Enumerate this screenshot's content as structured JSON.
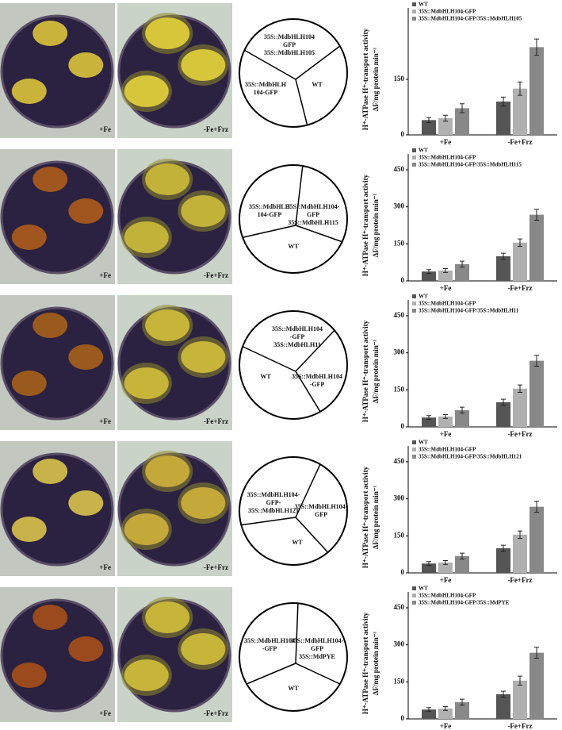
{
  "panels": [
    {
      "plates": [
        "+Fe",
        "-Fe+Frz"
      ],
      "regions": [
        [
          "35S::MdbHLH104",
          "GFP",
          "35S::MdbHLH105"
        ],
        [
          "35S::MdbHLH",
          "104-GFP"
        ],
        [
          "WT"
        ]
      ]
    },
    {
      "plates": [
        "+Fe",
        "-Fe+Frz"
      ],
      "regions": [
        [
          "35S::MdbHLH104-",
          "GFP",
          "35S::MdbHLH115"
        ],
        [
          "35S::MdbHLH",
          "104-GFP"
        ],
        [
          "WT"
        ]
      ]
    },
    {
      "plates": [
        "+Fe",
        "-Fe+Frz"
      ],
      "regions": [
        [
          "35S::MdbHLH104",
          "-GFP",
          "35S::MdbHLH11"
        ],
        [
          "WT"
        ],
        [
          "35S::MdbHLH104",
          "-GFP"
        ]
      ]
    },
    {
      "plates": [
        "+Fe",
        "-Fe+Frz"
      ],
      "regions": [
        [
          "35S::MdbHLH104-",
          "GFP-",
          "35S::MdbHLH121"
        ],
        [
          "35S::MdbHLH104-",
          "GFP"
        ],
        [
          "WT"
        ]
      ]
    },
    {
      "plates": [
        "+Fe",
        "-Fe+Frz"
      ],
      "regions": [
        [
          "35S::MdbHLH104",
          "-GFP"
        ],
        [
          "35S::MdbHLH104-",
          "GFP",
          "35S::MdPYE"
        ],
        [
          "WT"
        ]
      ]
    }
  ],
  "chart_data": [
    {
      "type": "bar",
      "y_label": [
        "H⁺-ATPase H⁺-transport activity",
        "ΔF/mg protein min⁻¹"
      ],
      "categories": [
        "+Fe",
        "-Fe+Frz"
      ],
      "series": [
        {
          "name": "WT",
          "color": "#555555",
          "values": [
            40,
            90
          ],
          "errors": [
            7,
            12
          ]
        },
        {
          "name": "35S::MdbHLH104-GFP",
          "color": "#b0b0b0",
          "values": [
            45,
            125
          ],
          "errors": [
            8,
            18
          ]
        },
        {
          "name": "35S::MdbHLH104-GFP/35S::MdbHLH105",
          "color": "#888888",
          "values": [
            72,
            237
          ],
          "errors": [
            12,
            22
          ]
        }
      ],
      "ylim": [
        0,
        300
      ],
      "yticks": [
        0,
        150
      ]
    },
    {
      "type": "bar",
      "y_label": [
        "H⁺-ATPase H⁺-transport activity",
        "ΔF/mg protein min⁻¹"
      ],
      "categories": [
        "+Fe",
        "-Fe+Frz"
      ],
      "series": [
        {
          "name": "WT",
          "color": "#555555",
          "values": [
            38,
            100
          ],
          "errors": [
            8,
            12
          ]
        },
        {
          "name": "35S::MdbHLH104-GFP",
          "color": "#b0b0b0",
          "values": [
            42,
            155
          ],
          "errors": [
            8,
            15
          ]
        },
        {
          "name": "35S::MdbHLH104-GFP/35S::MdbHLH115",
          "color": "#888888",
          "values": [
            68,
            268
          ],
          "errors": [
            12,
            22
          ]
        }
      ],
      "ylim": [
        0,
        450
      ],
      "yticks": [
        0,
        150,
        300,
        450
      ]
    },
    {
      "type": "bar",
      "y_label": [
        "H⁺-ATPase H⁺-transport activity",
        "ΔF/mg protein min⁻¹"
      ],
      "categories": [
        "+Fe",
        "-Fe+Frz"
      ],
      "series": [
        {
          "name": "WT",
          "color": "#555555",
          "values": [
            38,
            100
          ],
          "errors": [
            8,
            12
          ]
        },
        {
          "name": "35S::MdbHLH104-GFP",
          "color": "#b0b0b0",
          "values": [
            42,
            155
          ],
          "errors": [
            8,
            15
          ]
        },
        {
          "name": "35S::MdbHLH104-GFP/35S::MdbHLH11",
          "color": "#888888",
          "values": [
            68,
            268
          ],
          "errors": [
            12,
            22
          ]
        }
      ],
      "ylim": [
        0,
        450
      ],
      "yticks": [
        0,
        150,
        300,
        450
      ]
    },
    {
      "type": "bar",
      "y_label": [
        "H⁺-ATPase H⁺-transport activity",
        "ΔF/mg protein min⁻¹"
      ],
      "categories": [
        "+Fe",
        "-Fe+Frz"
      ],
      "series": [
        {
          "name": "WT",
          "color": "#555555",
          "values": [
            38,
            100
          ],
          "errors": [
            8,
            12
          ]
        },
        {
          "name": "35S::MdbHLH104-GFP",
          "color": "#b0b0b0",
          "values": [
            42,
            155
          ],
          "errors": [
            8,
            15
          ]
        },
        {
          "name": "35S::MdbHLH104-GFP/35S::MdbHLH121",
          "color": "#888888",
          "values": [
            68,
            268
          ],
          "errors": [
            12,
            22
          ]
        }
      ],
      "ylim": [
        0,
        450
      ],
      "yticks": [
        0,
        150,
        300,
        450
      ]
    },
    {
      "type": "bar",
      "y_label": [
        "H⁺-ATPase H⁺-transport activity",
        "ΔF/mg protein min⁻¹"
      ],
      "categories": [
        "+Fe",
        "-Fe+Frz"
      ],
      "series": [
        {
          "name": "WT",
          "color": "#555555",
          "values": [
            38,
            100
          ],
          "errors": [
            8,
            12
          ]
        },
        {
          "name": "35S::MdbHLH104-GFP",
          "color": "#b0b0b0",
          "values": [
            42,
            155
          ],
          "errors": [
            8,
            18
          ]
        },
        {
          "name": "35S::MdbHLH104-GFP/35S::MdPYE",
          "color": "#888888",
          "values": [
            68,
            268
          ],
          "errors": [
            12,
            22
          ]
        }
      ],
      "ylim": [
        0,
        450
      ],
      "yticks": [
        0,
        150,
        300,
        450
      ]
    }
  ]
}
